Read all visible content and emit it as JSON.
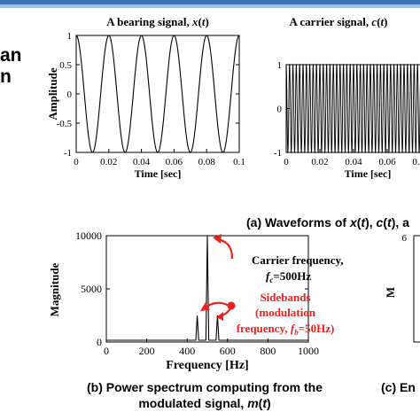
{
  "slide": {
    "left_text_1": "an",
    "left_text_2": "n",
    "accent": "#3b6fb6"
  },
  "captions": {
    "a": "(a) Waveforms of x(t), c(t), a",
    "b_line1": "(b) Power spectrum computing from the",
    "b_line2": "modulated signal, m(t)",
    "c": "(c) En"
  },
  "chart_data": [
    {
      "id": "bearing",
      "type": "line",
      "title": "A bearing signal, x(t)",
      "xlabel": "Time [sec]",
      "ylabel": "Amplitude",
      "xlim": [
        0,
        0.1
      ],
      "ylim": [
        -1,
        1
      ],
      "xticks": [
        "0",
        "0.02",
        "0.04",
        "0.06",
        "0.08",
        "0.1"
      ],
      "yticks": [
        "-1",
        "-0.5",
        "0",
        "0.5",
        "1"
      ],
      "series": [
        {
          "kind": "cosine",
          "frequency_hz": 50,
          "amplitude": 1
        }
      ]
    },
    {
      "id": "carrier",
      "type": "line",
      "title": "A carrier signal, c(t)",
      "xlabel": "Time [sec]",
      "ylabel": "",
      "xlim": [
        0,
        0.1
      ],
      "ylim": [
        -1,
        1
      ],
      "xticks": [
        "0",
        "0.02",
        "0.04",
        "0.06",
        "0.08"
      ],
      "yticks": [
        "-1",
        "0",
        "1"
      ],
      "series": [
        {
          "kind": "cosine",
          "frequency_hz": 500,
          "amplitude": 1
        }
      ]
    },
    {
      "id": "spectrum",
      "type": "line",
      "title": "",
      "xlabel": "Frequency [Hz]",
      "ylabel": "Magnitude",
      "xlim": [
        0,
        1000
      ],
      "ylim": [
        0,
        10000
      ],
      "xticks": [
        "0",
        "200",
        "400",
        "600",
        "800",
        "1000"
      ],
      "yticks": [
        "0",
        "5000",
        "10000"
      ],
      "series": [
        {
          "name": "",
          "x": [
            450,
            500,
            550
          ],
          "y": [
            2500,
            10000,
            2500
          ]
        }
      ],
      "annotations": [
        {
          "text_line1": "Carrier frequency,",
          "text_line2": "f_c=500Hz",
          "color": "#000000"
        },
        {
          "text_line1": "Sidebands",
          "text_line2": "(modulation",
          "text_line3": "frequency, f_b=50Hz)",
          "color": "#e8231f"
        }
      ]
    },
    {
      "id": "envelope",
      "type": "line",
      "title": "",
      "xlabel": "",
      "ylabel": "M",
      "yticks": [
        "6"
      ],
      "series": []
    }
  ]
}
